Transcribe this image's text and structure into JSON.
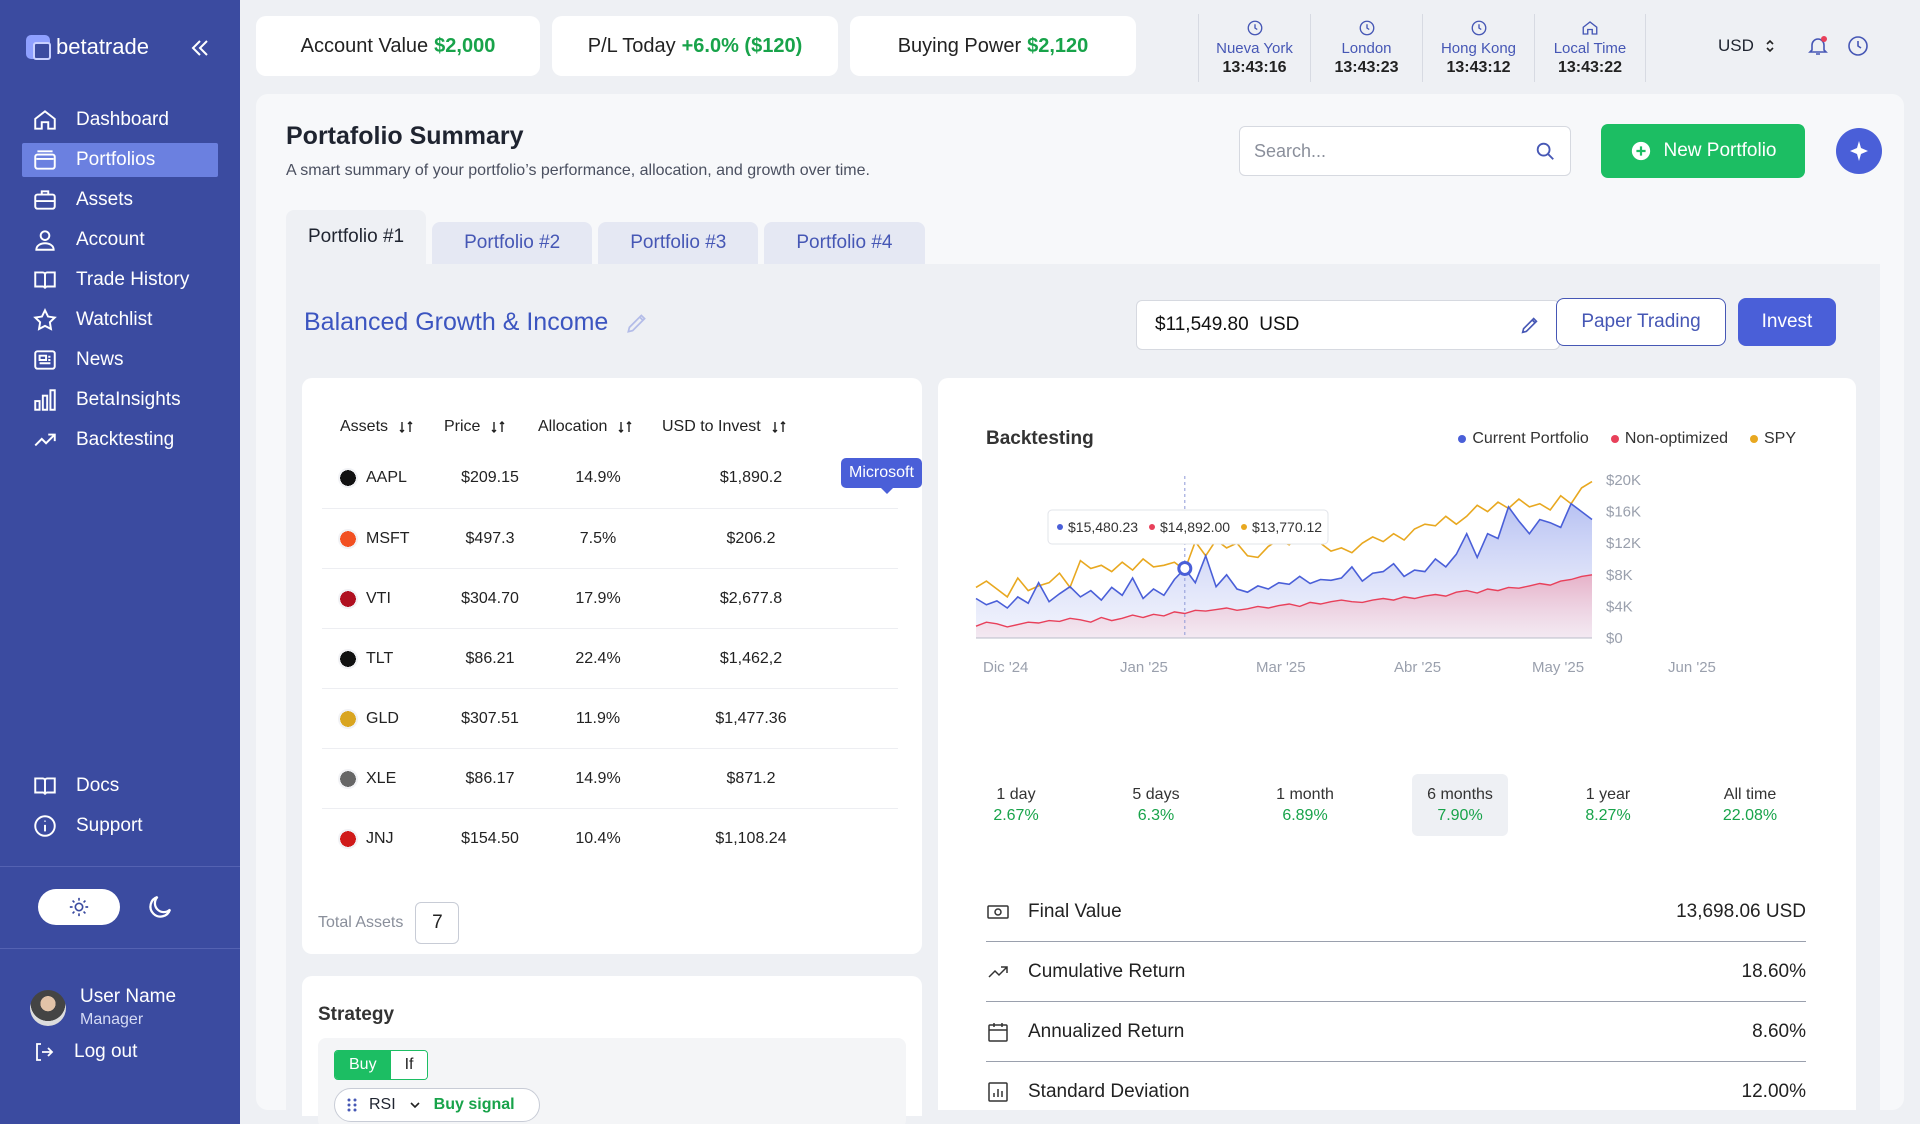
{
  "brand": {
    "name": "betatrade"
  },
  "sidebar": {
    "items": [
      {
        "label": "Dashboard"
      },
      {
        "label": "Portfolios"
      },
      {
        "label": "Assets"
      },
      {
        "label": "Account"
      },
      {
        "label": "Trade History"
      },
      {
        "label": "Watchlist"
      },
      {
        "label": "News"
      },
      {
        "label": "BetaInsights"
      },
      {
        "label": "Backtesting"
      }
    ],
    "bottom_items": [
      {
        "label": "Docs"
      },
      {
        "label": "Support"
      }
    ],
    "user": {
      "name": "User Name",
      "role": "Manager"
    },
    "logout": "Log out"
  },
  "topbar": {
    "account_value": {
      "label": "Account Value",
      "value": "$2,000"
    },
    "pl_today": {
      "label": "P/L Today",
      "value": "+6.0% ($120)"
    },
    "buying_power": {
      "label": "Buying Power",
      "value": "$2,120"
    },
    "clocks": [
      {
        "city": "Nueva York",
        "time": "13:43:16",
        "icon": "clock-icon"
      },
      {
        "city": "London",
        "time": "13:43:23",
        "icon": "clock-icon"
      },
      {
        "city": "Hong Kong",
        "time": "13:43:12",
        "icon": "clock-icon"
      },
      {
        "city": "Local Time",
        "time": "13:43:22",
        "icon": "home-icon"
      }
    ],
    "currency": "USD"
  },
  "page": {
    "title": "Portafolio Summary",
    "subtitle": "A smart summary of your portfolio’s performance, allocation, and growth over time.",
    "search_placeholder": "Search...",
    "new_portfolio": "New Portfolio",
    "tabs": [
      {
        "label": "Portfolio #1"
      },
      {
        "label": "Portfolio #2"
      },
      {
        "label": "Portfolio #3"
      },
      {
        "label": "Portfolio #4"
      }
    ],
    "portfolio_name": "Balanced Growth & Income",
    "amount": "$11,549.80",
    "amount_currency": "USD",
    "paper_trading": "Paper Trading",
    "invest": "Invest"
  },
  "assets_table": {
    "headers": [
      "Assets",
      "Price",
      "Allocation",
      "USD to Invest"
    ],
    "rows": [
      {
        "ticker": "AAPL",
        "price": "$209.15",
        "allocation": "14.9%",
        "usd": "$1,890.2",
        "color": "#111111"
      },
      {
        "ticker": "MSFT",
        "price": "$497.3",
        "allocation": "7.5%",
        "usd": "$206.2",
        "color": "#f25022"
      },
      {
        "ticker": "VTI",
        "price": "$304.70",
        "allocation": "17.9%",
        "usd": "$2,677.8",
        "color": "#b01020"
      },
      {
        "ticker": "TLT",
        "price": "$86.21",
        "allocation": "22.4%",
        "usd": "$1,462,2",
        "color": "#111111"
      },
      {
        "ticker": "GLD",
        "price": "$307.51",
        "allocation": "11.9%",
        "usd": "$1,477.36",
        "color": "#d9a520"
      },
      {
        "ticker": "XLE",
        "price": "$86.17",
        "allocation": "14.9%",
        "usd": "$871.2",
        "color": "#666666"
      },
      {
        "ticker": "JNJ",
        "price": "$154.50",
        "allocation": "10.4%",
        "usd": "$1,108.24",
        "color": "#d01a1a"
      }
    ],
    "tooltip": "Microsoft",
    "total_label": "Total Assets",
    "total_value": "7"
  },
  "strategy": {
    "title": "Strategy",
    "seg_on": "Buy",
    "seg_off": "If",
    "indicator": "RSI",
    "signal": "Buy signal"
  },
  "backtesting": {
    "title": "Backtesting",
    "hover": [
      "$15,480.23",
      "$14,892.00",
      "$13,770.12"
    ],
    "periods": [
      {
        "label": "1 day",
        "value": "2.67%"
      },
      {
        "label": "5 days",
        "value": "6.3%"
      },
      {
        "label": "1 month",
        "value": "6.89%"
      },
      {
        "label": "6 months",
        "value": "7.90%"
      },
      {
        "label": "1 year",
        "value": "8.27%"
      },
      {
        "label": "All time",
        "value": "22.08%"
      }
    ],
    "metrics": [
      {
        "label": "Final Value",
        "value": "13,698.06 USD",
        "icon": "cash-icon"
      },
      {
        "label": "Cumulative Return",
        "value": "18.60%",
        "icon": "trend-up-icon"
      },
      {
        "label": "Annualized Return",
        "value": "8.60%",
        "icon": "calendar-icon"
      },
      {
        "label": "Standard Deviation",
        "value": "12.00%",
        "icon": "bar-chart-icon"
      }
    ]
  },
  "colors": {
    "accent": "#4a5fd8",
    "green": "#1cbe63",
    "current": "#4a5fd8",
    "nonopt": "#e8405a",
    "spy": "#e8a820"
  },
  "chart_data": {
    "type": "line",
    "x_labels": [
      "Dic '24",
      "Jan '25",
      "Mar '25",
      "Abr '25",
      "May '25",
      "Jun '25"
    ],
    "y_labels": [
      "$20K",
      "$16K",
      "$12K",
      "$8K",
      "$4K",
      "$0"
    ],
    "ylim": [
      0,
      20000
    ],
    "legend": [
      "Current Portfolio",
      "Non-optimized",
      "SPY"
    ],
    "series": [
      {
        "name": "Current Portfolio",
        "values": [
          5000,
          4200,
          4700,
          3800,
          5200,
          4400,
          7000,
          4600,
          5600,
          6500,
          5200,
          6000,
          4800,
          6400,
          5400,
          7600,
          5000,
          6200,
          5400,
          7400,
          8800,
          7000,
          10400,
          6500,
          8000,
          6200,
          5800,
          6600,
          6200,
          7000,
          6800,
          7800,
          6900,
          7400,
          7300,
          7600,
          9000,
          7200,
          8200,
          8400,
          9400,
          7800,
          8600,
          8400,
          10000,
          9000,
          10600,
          13200,
          10200,
          13200,
          12600,
          16600,
          14800,
          13200,
          15000,
          14600,
          14000,
          17000,
          16000,
          15000
        ]
      },
      {
        "name": "Non-optimized",
        "values": [
          1500,
          2000,
          1800,
          1400,
          1700,
          2000,
          1900,
          2200,
          2100,
          2500,
          2300,
          2000,
          2600,
          2200,
          2500,
          2900,
          2600,
          3000,
          2800,
          3300,
          3100,
          3500,
          3400,
          3600,
          3800,
          3500,
          3700,
          4000,
          3800,
          4100,
          4300,
          4000,
          4500,
          4300,
          4600,
          4800,
          4600,
          4500,
          4800,
          5000,
          4800,
          5200,
          5000,
          5300,
          5500,
          5300,
          5800,
          6000,
          5700,
          6200,
          6000,
          6400,
          6300,
          6600,
          6900,
          6700,
          7200,
          7400,
          7800,
          8000
        ]
      },
      {
        "name": "SPY",
        "values": [
          6400,
          7200,
          6200,
          5200,
          7600,
          6000,
          6600,
          7000,
          8200,
          6400,
          9800,
          8800,
          9200,
          8400,
          9600,
          8600,
          10000,
          9000,
          9200,
          9600,
          8600,
          12200,
          10400,
          12400,
          11400,
          12000,
          10400,
          10200,
          11600,
          12400,
          11800,
          13000,
          12400,
          12000,
          11000,
          11400,
          10800,
          12000,
          12800,
          12200,
          13200,
          12400,
          13800,
          14400,
          14200,
          15400,
          14400,
          15400,
          16800,
          16000,
          17200,
          16400,
          17600,
          16600,
          17000,
          16200,
          18000,
          17000,
          19000,
          19800
        ]
      }
    ]
  }
}
